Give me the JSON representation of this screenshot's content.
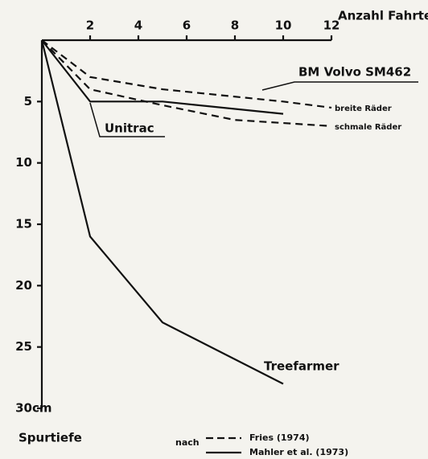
{
  "chart_data": {
    "type": "line",
    "x_label": "Anzahl Fahrten",
    "y_label": "Spurtiefe",
    "y_unit": "cm",
    "xlim": [
      0,
      12
    ],
    "xticks": [
      2,
      4,
      6,
      8,
      10,
      12
    ],
    "ylim": [
      0,
      30
    ],
    "yticks": [
      5,
      10,
      15,
      20,
      25,
      30
    ],
    "y_inverted": true,
    "x_axis_position": "top",
    "color": "#111111",
    "group_label": "BM Volvo SM462",
    "series": [
      {
        "name": "Unitrac",
        "dash": false,
        "x": [
          0,
          2,
          5,
          10
        ],
        "values": [
          0,
          5,
          5,
          6
        ]
      },
      {
        "name": "Treefarmer",
        "dash": false,
        "x": [
          0,
          2,
          5,
          10
        ],
        "values": [
          0,
          16,
          23,
          28
        ]
      },
      {
        "name": "breite Räder",
        "dash": true,
        "x": [
          0,
          2,
          5,
          10,
          12
        ],
        "values": [
          0,
          3,
          4,
          5,
          5.5
        ]
      },
      {
        "name": "schmale Räder",
        "dash": true,
        "x": [
          0,
          2,
          5,
          8,
          12
        ],
        "values": [
          0,
          4,
          5.3,
          6.5,
          7
        ]
      }
    ],
    "legend_prefix": "nach",
    "legend": [
      {
        "label": "Fries (1974)",
        "dash": true
      },
      {
        "label": "Mahler et al. (1973)",
        "dash": false
      }
    ]
  }
}
